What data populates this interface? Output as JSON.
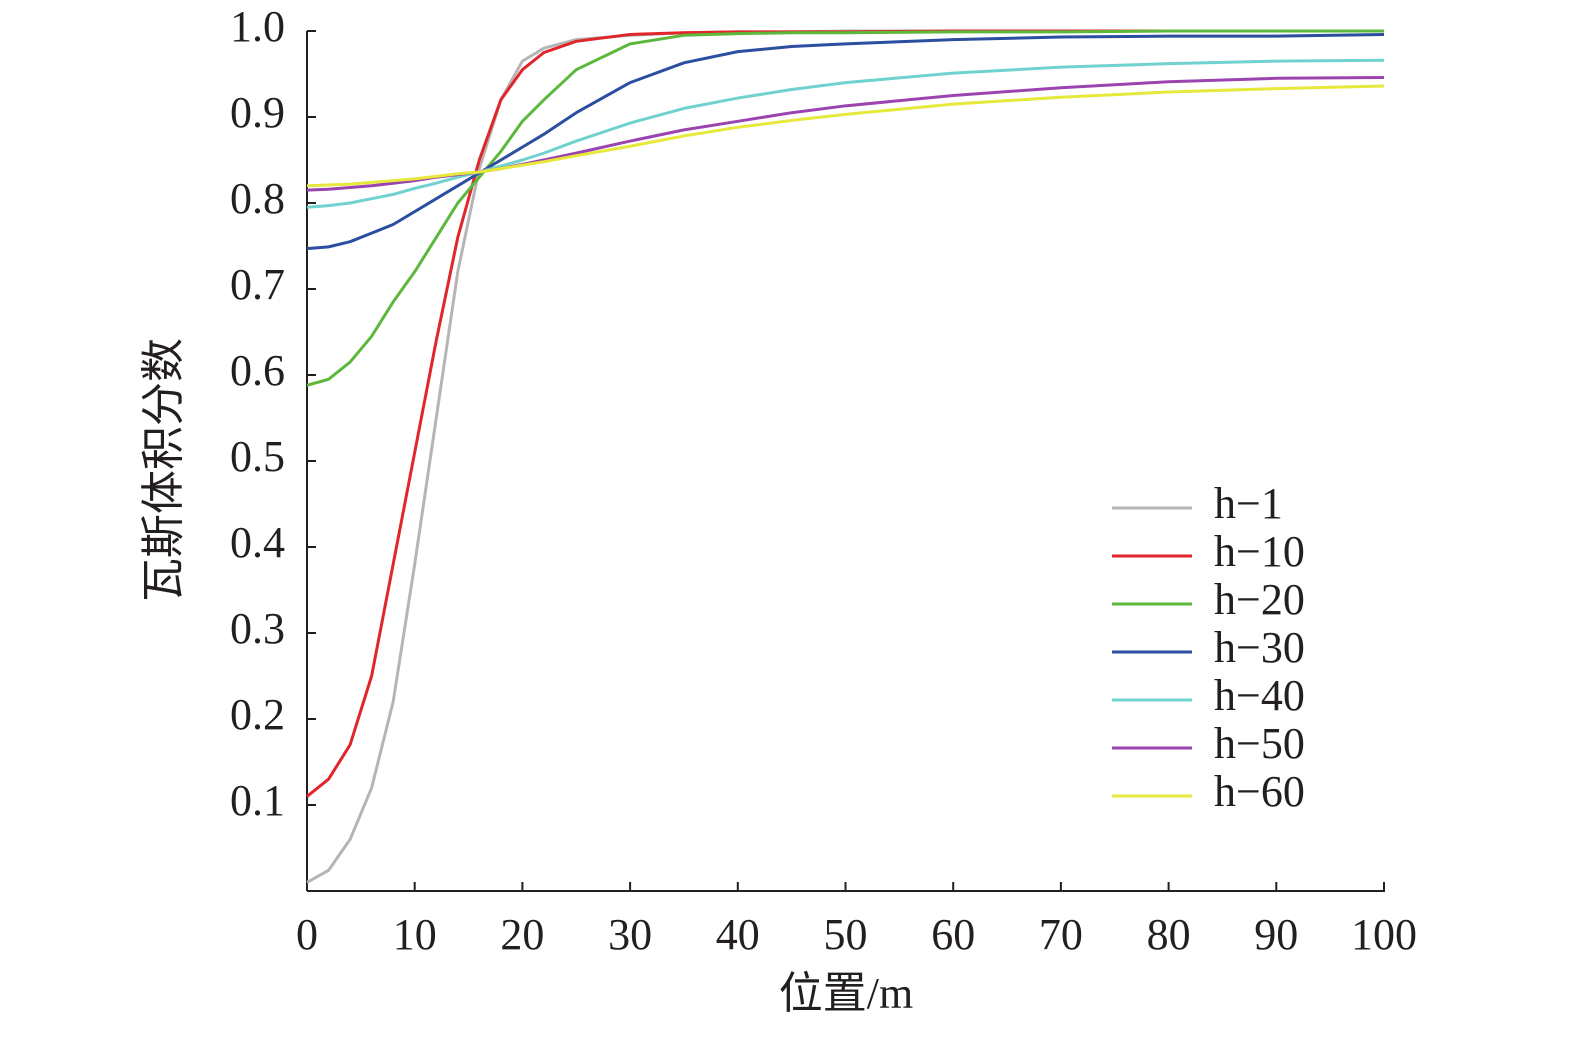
{
  "chart_data": {
    "type": "line",
    "x_label": "位置/m",
    "y_label": "瓦斯体积分数",
    "x": [
      0,
      2,
      4,
      6,
      8,
      10,
      12,
      14,
      16,
      18,
      20,
      22,
      25,
      30,
      35,
      40,
      45,
      50,
      60,
      70,
      80,
      90,
      100
    ],
    "series": [
      {
        "name": "h−1",
        "color": "#b5b5b5",
        "values": [
          0.01,
          0.024,
          0.06,
          0.12,
          0.22,
          0.38,
          0.55,
          0.72,
          0.84,
          0.92,
          0.965,
          0.98,
          0.99,
          0.995,
          0.998,
          0.999,
          0.999,
          1.0,
          1.0,
          1.0,
          1.0,
          1.0,
          1.0
        ]
      },
      {
        "name": "h−10",
        "color": "#e1262b",
        "values": [
          0.11,
          0.13,
          0.17,
          0.25,
          0.38,
          0.51,
          0.64,
          0.76,
          0.85,
          0.92,
          0.955,
          0.975,
          0.988,
          0.996,
          0.998,
          0.999,
          0.999,
          0.999,
          1.0,
          1.0,
          1.0,
          1.0,
          1.0
        ]
      },
      {
        "name": "h−20",
        "color": "#5cb83a",
        "values": [
          0.588,
          0.595,
          0.615,
          0.645,
          0.685,
          0.72,
          0.76,
          0.8,
          0.83,
          0.86,
          0.895,
          0.92,
          0.955,
          0.985,
          0.995,
          0.997,
          0.998,
          0.998,
          0.999,
          0.999,
          1.0,
          1.0,
          1.0
        ]
      },
      {
        "name": "h−30",
        "color": "#2b4ea0",
        "values": [
          0.747,
          0.749,
          0.755,
          0.765,
          0.775,
          0.79,
          0.805,
          0.82,
          0.835,
          0.85,
          0.865,
          0.88,
          0.905,
          0.94,
          0.963,
          0.976,
          0.982,
          0.985,
          0.99,
          0.993,
          0.994,
          0.994,
          0.996
        ]
      },
      {
        "name": "h−40",
        "color": "#70d2cf",
        "values": [
          0.795,
          0.797,
          0.8,
          0.805,
          0.81,
          0.817,
          0.823,
          0.83,
          0.836,
          0.843,
          0.85,
          0.858,
          0.872,
          0.893,
          0.91,
          0.922,
          0.932,
          0.94,
          0.951,
          0.958,
          0.962,
          0.965,
          0.966
        ]
      },
      {
        "name": "h−50",
        "color": "#9b44b0",
        "values": [
          0.815,
          0.816,
          0.818,
          0.82,
          0.823,
          0.826,
          0.83,
          0.833,
          0.836,
          0.84,
          0.845,
          0.85,
          0.858,
          0.872,
          0.885,
          0.895,
          0.905,
          0.913,
          0.925,
          0.934,
          0.941,
          0.945,
          0.946
        ]
      },
      {
        "name": "h−60",
        "color": "#e6e83a",
        "values": [
          0.82,
          0.821,
          0.822,
          0.824,
          0.826,
          0.828,
          0.831,
          0.834,
          0.836,
          0.84,
          0.844,
          0.848,
          0.855,
          0.866,
          0.878,
          0.888,
          0.896,
          0.903,
          0.915,
          0.923,
          0.929,
          0.933,
          0.936
        ]
      }
    ],
    "xlim": [
      0,
      100
    ],
    "xticks": [
      0,
      10,
      20,
      30,
      40,
      50,
      60,
      70,
      80,
      90,
      100
    ],
    "ylim": [
      0,
      1
    ],
    "yticks": [
      0.1,
      0.2,
      0.3,
      0.4,
      0.5,
      0.6,
      0.7,
      0.8,
      0.9,
      {
        "value": 1,
        "label": "1.0"
      }
    ],
    "grid": false,
    "legend": "lower right"
  }
}
